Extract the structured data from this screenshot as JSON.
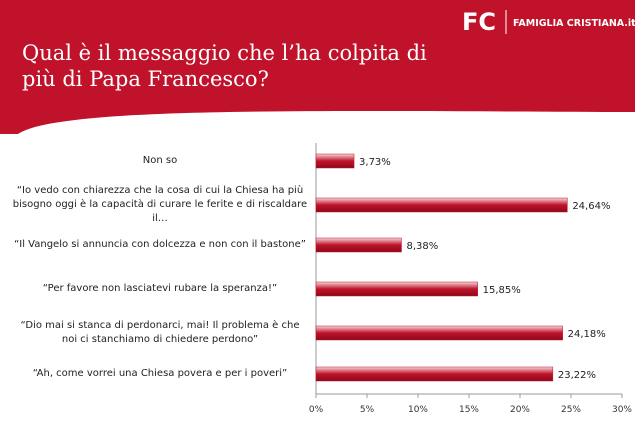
{
  "header": {
    "logo_mark": "FC",
    "logo_text": "FAMIGLIA CRISTIANA.it"
  },
  "chart_data": {
    "type": "bar",
    "orientation": "horizontal",
    "title": "Qual è il messaggio che l’ha colpita di più di Papa Francesco?",
    "categories": [
      "Non so",
      "“Io vedo con chiarezza che la cosa di cui la Chiesa ha più bisogno oggi è la capacità di curare le ferite e di riscaldare il…",
      "“Il Vangelo si annuncia con dolcezza e non con il bastone”",
      "“Per favore non lasciatevi rubare la speranza!”",
      "“Dio mai si stanca di perdonarci, mai! Il problema è che noi ci stanchiamo di chiedere perdono”",
      "“Ah, come vorrei una Chiesa povera e per i poveri”"
    ],
    "values": [
      3.73,
      24.64,
      8.38,
      15.85,
      24.18,
      23.22
    ],
    "value_labels": [
      "3,73%",
      "24,64%",
      "8,38%",
      "15,85%",
      "24,18%",
      "23,22%"
    ],
    "color": "#c0122a",
    "xlim": [
      0,
      30
    ],
    "xticks": [
      {
        "value": 0,
        "label": "0%"
      },
      {
        "value": 5,
        "label": "5%"
      },
      {
        "value": 10,
        "label": "10%"
      },
      {
        "value": 15,
        "label": "15%"
      },
      {
        "value": 20,
        "label": "20%"
      },
      {
        "value": 25,
        "label": "25%"
      },
      {
        "value": 30,
        "label": "30%"
      }
    ]
  }
}
